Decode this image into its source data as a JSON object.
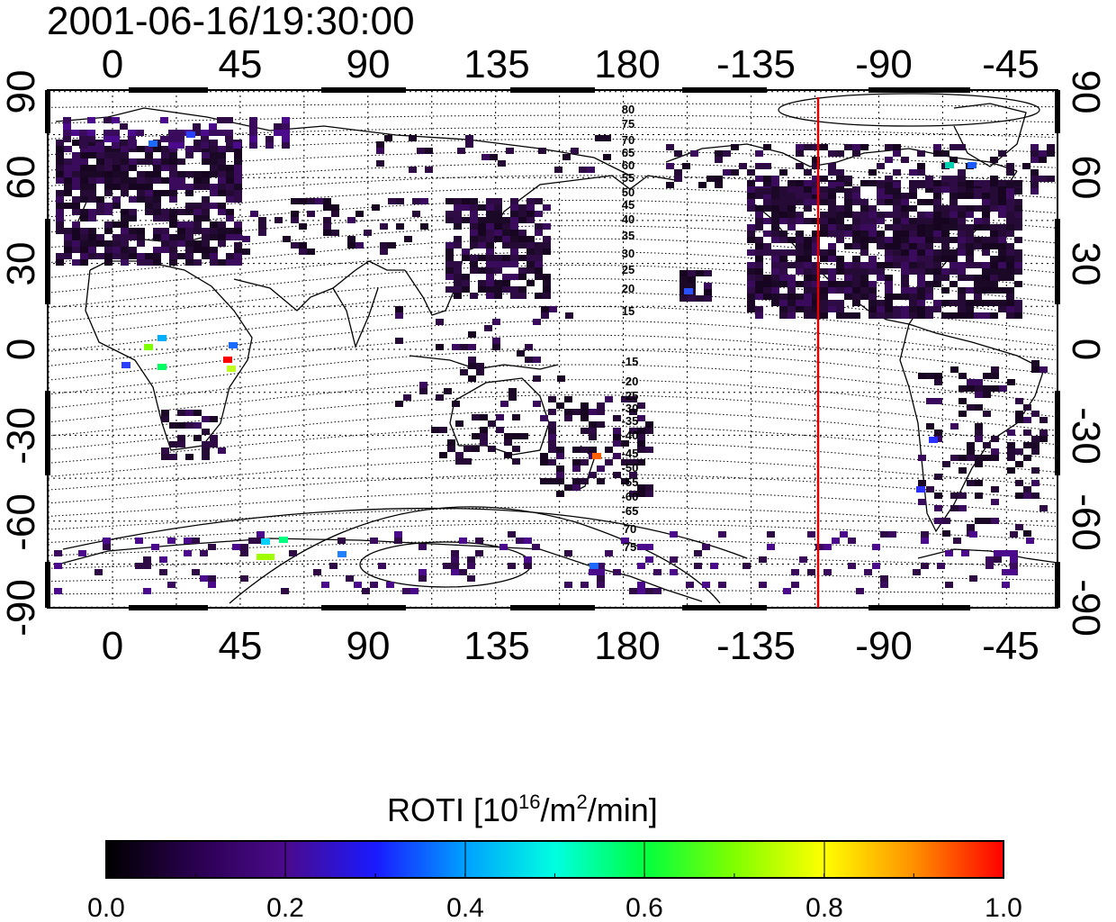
{
  "title": "2001-06-16/19:30:00",
  "map": {
    "lon_ticks_top": [
      "0",
      "45",
      "90",
      "135",
      "180",
      "-135",
      "-90",
      "-45"
    ],
    "lon_ticks_bottom": [
      "0",
      "45",
      "90",
      "135",
      "180",
      "-135",
      "-90",
      "-45"
    ],
    "lat_ticks_left": [
      "90",
      "60",
      "30",
      "0",
      "-30",
      "-60",
      "-90"
    ],
    "lat_ticks_right": [
      "90",
      "60",
      "30",
      "0",
      "-30",
      "-60",
      "-90"
    ],
    "contour_labels_north": [
      "80",
      "75",
      "70",
      "65",
      "60",
      "55",
      "50",
      "45",
      "40",
      "35",
      "30",
      "25",
      "20",
      "15"
    ],
    "contour_labels_south": [
      "-15",
      "-20",
      "-25",
      "-30",
      "-35",
      "-40",
      "-45",
      "-50",
      "-55",
      "-60",
      "-65",
      "70",
      "75"
    ],
    "local_time_line_color": "#e00000",
    "grid": true
  },
  "colorbar": {
    "label_main": "ROTI  [10",
    "label_sup1": "16",
    "label_mid": "/m",
    "label_sup2": "2",
    "label_end": "/min]",
    "ticks": [
      "0.0",
      "0.2",
      "0.4",
      "0.6",
      "0.8",
      "1.0"
    ],
    "range": [
      0.0,
      1.0
    ],
    "colormap": [
      "#000000",
      "#2a0050",
      "#4b0a8c",
      "#1a1aff",
      "#00a0ff",
      "#00ffe0",
      "#00ff40",
      "#80ff00",
      "#ffff00",
      "#ff9000",
      "#ff0000"
    ]
  }
}
